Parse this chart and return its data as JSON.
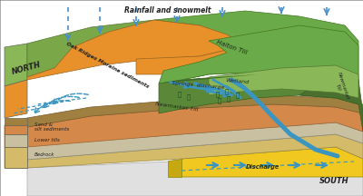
{
  "bg_color": "#ffffff",
  "rainfall_text": "Rainfall and snowmelt",
  "north_text": "NORTH",
  "south_text": "SOUTH",
  "discharge_text": "Discharge",
  "colors": {
    "bedrock": "#d4bb6a",
    "lower_tills": "#c8c0a0",
    "sand_silt": "#d4884a",
    "newmarket_till_stripe": "#a08040",
    "oak_ridges": "#e8902a",
    "halton_till": "#6aaa48",
    "newmarket_south": "#5a8838",
    "top_green_hill": "#8ab858",
    "top_green_back": "#7aa848",
    "discharge_yellow": "#f0c820",
    "discharge_white": "#e8e8e8",
    "stream_blue": "#3a95c0",
    "rain_blue": "#4a90c8",
    "dark_green_edge": "#3a6a28",
    "edge_dark": "#666655"
  }
}
